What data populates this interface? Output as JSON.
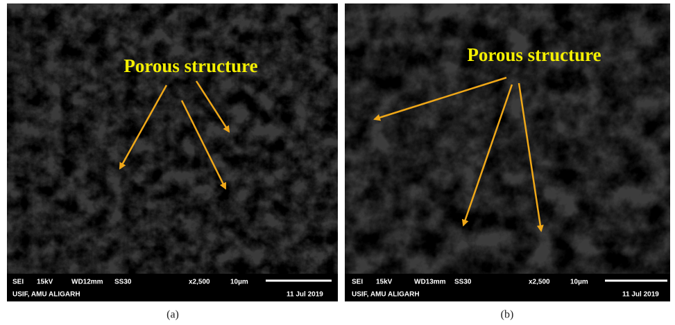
{
  "panels": [
    {
      "annotation": "Porous structure",
      "info": {
        "detector": "SEI",
        "voltage": "15kV",
        "working_distance": "WD12mm",
        "spot_size": "SS30",
        "magnification": "x2,500",
        "scale": "10µm",
        "facility": "USIF, AMU ALIGARH",
        "date": "11 Jul 2019"
      },
      "caption": "(a)"
    },
    {
      "annotation": "Porous structure",
      "info": {
        "detector": "SEI",
        "voltage": "15kV",
        "working_distance": "WD13mm",
        "spot_size": "SS30",
        "magnification": "x2,500",
        "scale": "10µm",
        "facility": "USIF, AMU ALIGARH",
        "date": "11 Jul 2019"
      },
      "caption": "(b)"
    }
  ]
}
